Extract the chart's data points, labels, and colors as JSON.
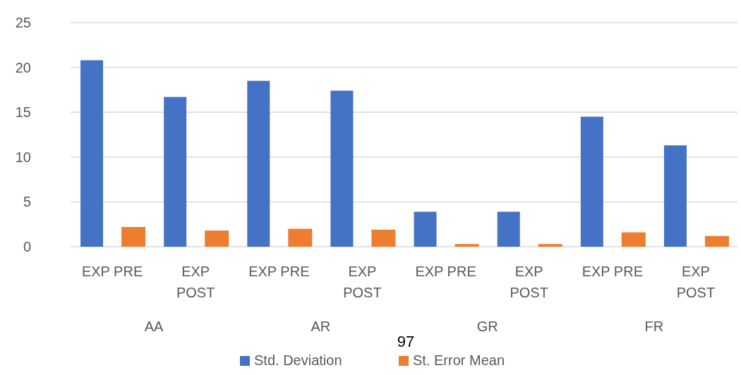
{
  "chart_data": {
    "type": "bar",
    "categories": [
      "EXP PRE",
      "EXP POST",
      "EXP PRE",
      "EXP POST",
      "EXP PRE",
      "EXP POST",
      "EXP PRE",
      "EXP POST"
    ],
    "series": [
      {
        "name": "Std. Deviation",
        "color": "#4472c4",
        "values": [
          20.8,
          16.7,
          18.5,
          17.4,
          3.9,
          3.9,
          14.5,
          11.3
        ]
      },
      {
        "name": "St. Error Mean",
        "color": "#ed7d31",
        "values": [
          2.2,
          1.8,
          2.0,
          1.9,
          0.3,
          0.3,
          1.6,
          1.2
        ]
      }
    ],
    "ylim": [
      0,
      25
    ],
    "yticks": [
      0,
      5,
      10,
      15,
      20,
      25
    ],
    "grid": "y",
    "legend": "bottom",
    "annotations": [
      "AA",
      "AR",
      "GR",
      "FR",
      "97"
    ]
  }
}
